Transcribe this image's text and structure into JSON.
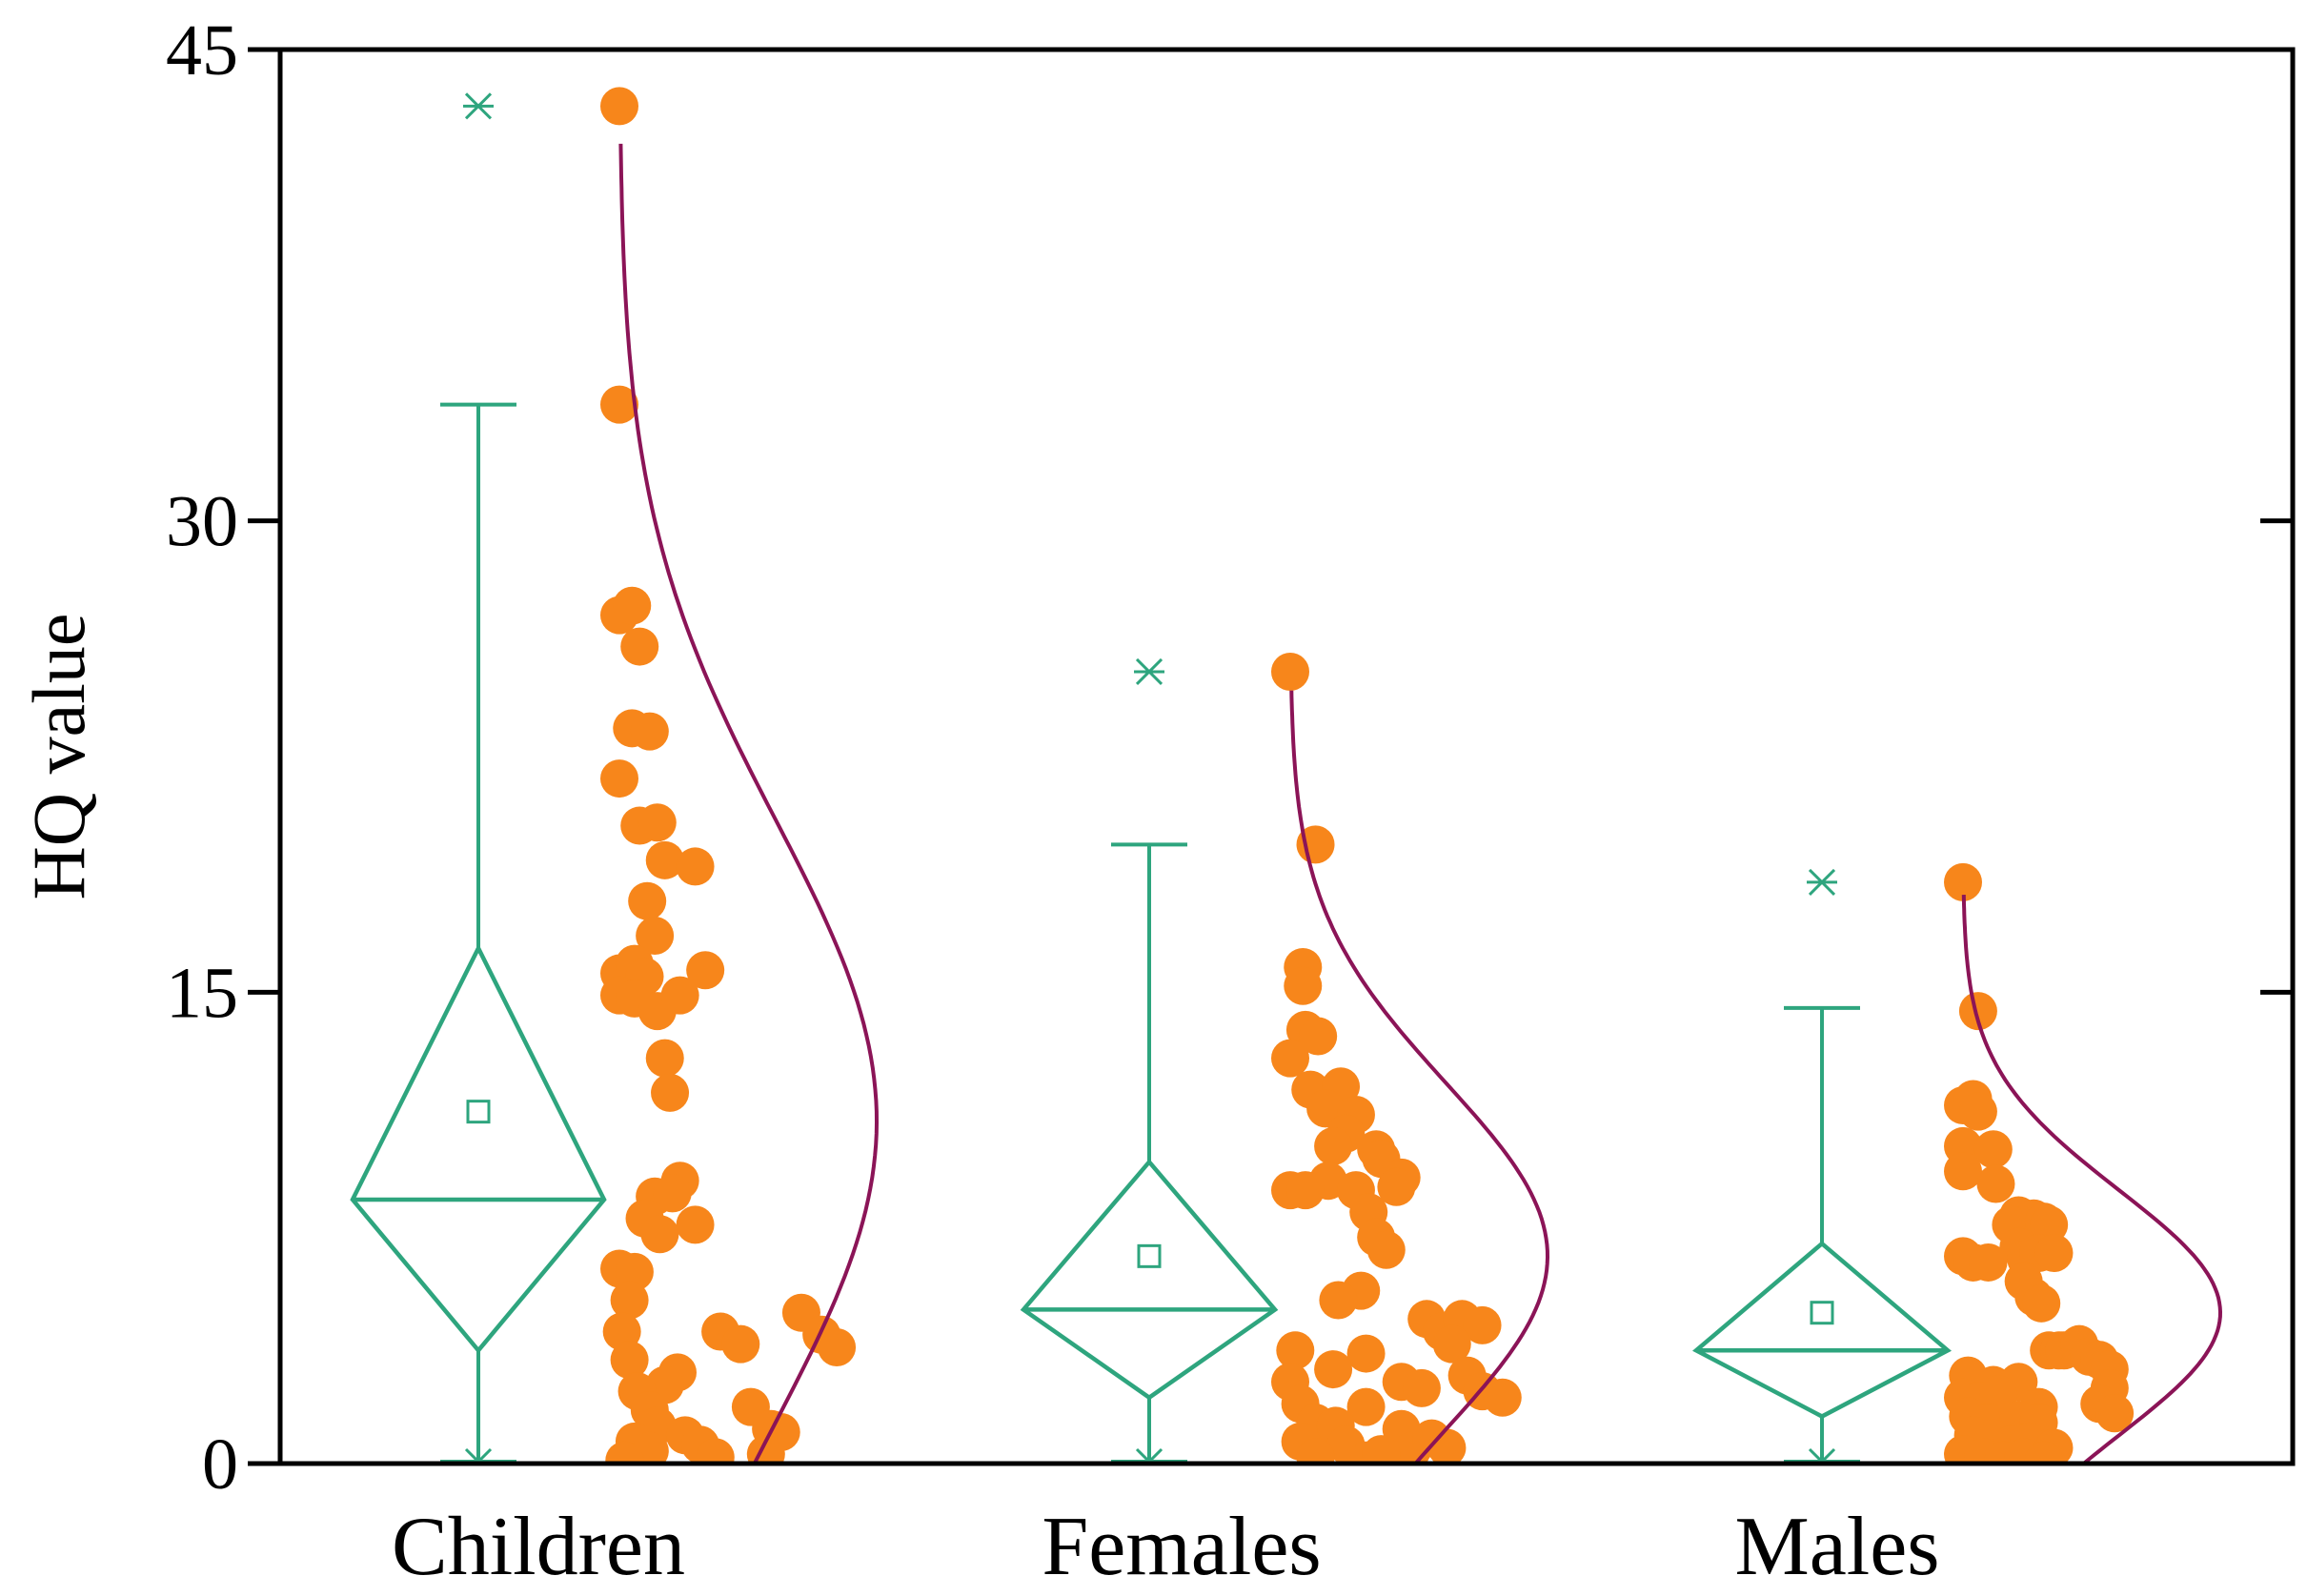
{
  "chart_data": {
    "type": "box-scatter",
    "title": "",
    "xlabel": "",
    "ylabel": "HQ value",
    "ylim": [
      0,
      45
    ],
    "yticks": [
      0,
      15,
      30,
      45
    ],
    "categories": [
      "Children",
      "Females",
      "Males"
    ],
    "colors": {
      "box": "#2ea57e",
      "points": "#f7861b",
      "curve": "#8b1457",
      "axis": "#000000"
    },
    "groups": [
      {
        "name": "Children",
        "box": {
          "q1": 3.6,
          "median": 8.4,
          "q3": 16.4,
          "mean": 11.2,
          "whisker_low": 0.0,
          "whisker_high": 33.7
        },
        "outliers": [
          43.2
        ],
        "curve": {
          "mean": 10.9,
          "sd": 9.6,
          "max": 42.0
        },
        "points": [
          {
            "x": 0.0,
            "y": 43.2
          },
          {
            "x": 0.0,
            "y": 33.7
          },
          {
            "x": 0.0,
            "y": 27.0
          },
          {
            "x": 0.05,
            "y": 27.3
          },
          {
            "x": 0.08,
            "y": 26.0
          },
          {
            "x": 0.05,
            "y": 23.4
          },
          {
            "x": 0.12,
            "y": 23.3
          },
          {
            "x": 0.0,
            "y": 21.8
          },
          {
            "x": 0.08,
            "y": 20.3
          },
          {
            "x": 0.15,
            "y": 20.4
          },
          {
            "x": 0.18,
            "y": 19.2
          },
          {
            "x": 0.3,
            "y": 19.0
          },
          {
            "x": 0.11,
            "y": 17.9
          },
          {
            "x": 0.14,
            "y": 16.8
          },
          {
            "x": 0.0,
            "y": 15.6
          },
          {
            "x": 0.06,
            "y": 15.9
          },
          {
            "x": 0.1,
            "y": 15.5
          },
          {
            "x": 0.34,
            "y": 15.7
          },
          {
            "x": 0.0,
            "y": 14.9
          },
          {
            "x": 0.06,
            "y": 14.8
          },
          {
            "x": 0.15,
            "y": 14.4
          },
          {
            "x": 0.24,
            "y": 14.9
          },
          {
            "x": 0.18,
            "y": 12.9
          },
          {
            "x": 0.2,
            "y": 11.8
          },
          {
            "x": 0.24,
            "y": 9.0
          },
          {
            "x": 0.14,
            "y": 8.5
          },
          {
            "x": 0.21,
            "y": 8.6
          },
          {
            "x": 0.1,
            "y": 7.8
          },
          {
            "x": 0.16,
            "y": 7.3
          },
          {
            "x": 0.3,
            "y": 7.6
          },
          {
            "x": 0.0,
            "y": 6.2
          },
          {
            "x": 0.06,
            "y": 6.1
          },
          {
            "x": 0.04,
            "y": 5.2
          },
          {
            "x": 0.01,
            "y": 4.2
          },
          {
            "x": 0.4,
            "y": 4.2
          },
          {
            "x": 0.48,
            "y": 3.8
          },
          {
            "x": 0.72,
            "y": 4.8
          },
          {
            "x": 0.8,
            "y": 4.1
          },
          {
            "x": 0.86,
            "y": 3.7
          },
          {
            "x": 0.04,
            "y": 3.3
          },
          {
            "x": 0.23,
            "y": 2.9
          },
          {
            "x": 0.18,
            "y": 2.5
          },
          {
            "x": 0.07,
            "y": 2.3
          },
          {
            "x": 0.12,
            "y": 1.7
          },
          {
            "x": 0.52,
            "y": 1.8
          },
          {
            "x": 0.15,
            "y": 1.2
          },
          {
            "x": 0.6,
            "y": 1.1
          },
          {
            "x": 0.64,
            "y": 1.0
          },
          {
            "x": 0.06,
            "y": 0.7
          },
          {
            "x": 0.12,
            "y": 0.4
          },
          {
            "x": 0.26,
            "y": 0.9
          },
          {
            "x": 0.32,
            "y": 0.6
          },
          {
            "x": 0.38,
            "y": 0.2
          },
          {
            "x": 0.58,
            "y": 0.3
          },
          {
            "x": 0.02,
            "y": 0.1
          }
        ]
      },
      {
        "name": "Females",
        "box": {
          "q1": 2.1,
          "median": 4.9,
          "q3": 9.6,
          "mean": 6.6,
          "whisker_low": 0.0,
          "whisker_high": 19.7
        },
        "outliers": [
          25.2
        ],
        "curve": {
          "mean": 6.6,
          "sd": 5.5,
          "max": 24.6
        },
        "points": [
          {
            "x": 0.0,
            "y": 25.2
          },
          {
            "x": 0.1,
            "y": 19.7
          },
          {
            "x": 0.05,
            "y": 15.8
          },
          {
            "x": 0.05,
            "y": 15.2
          },
          {
            "x": 0.06,
            "y": 13.8
          },
          {
            "x": 0.11,
            "y": 13.6
          },
          {
            "x": 0.0,
            "y": 12.9
          },
          {
            "x": 0.08,
            "y": 11.9
          },
          {
            "x": 0.2,
            "y": 12.0
          },
          {
            "x": 0.14,
            "y": 11.3
          },
          {
            "x": 0.26,
            "y": 11.1
          },
          {
            "x": 0.22,
            "y": 10.5
          },
          {
            "x": 0.17,
            "y": 10.1
          },
          {
            "x": 0.34,
            "y": 10.0
          },
          {
            "x": 0.36,
            "y": 9.7
          },
          {
            "x": 0.15,
            "y": 9.0
          },
          {
            "x": 0.44,
            "y": 9.1
          },
          {
            "x": 0.0,
            "y": 8.7
          },
          {
            "x": 0.06,
            "y": 8.7
          },
          {
            "x": 0.26,
            "y": 8.7
          },
          {
            "x": 0.42,
            "y": 8.8
          },
          {
            "x": 0.31,
            "y": 8.0
          },
          {
            "x": 0.34,
            "y": 7.2
          },
          {
            "x": 0.38,
            "y": 6.8
          },
          {
            "x": 0.28,
            "y": 5.5
          },
          {
            "x": 0.19,
            "y": 5.2
          },
          {
            "x": 0.54,
            "y": 4.6
          },
          {
            "x": 0.6,
            "y": 4.2
          },
          {
            "x": 0.68,
            "y": 4.6
          },
          {
            "x": 0.76,
            "y": 4.4
          },
          {
            "x": 0.64,
            "y": 3.8
          },
          {
            "x": 0.02,
            "y": 3.6
          },
          {
            "x": 0.3,
            "y": 3.5
          },
          {
            "x": 0.17,
            "y": 3.0
          },
          {
            "x": 0.7,
            "y": 2.8
          },
          {
            "x": 0.0,
            "y": 2.6
          },
          {
            "x": 0.44,
            "y": 2.6
          },
          {
            "x": 0.52,
            "y": 2.4
          },
          {
            "x": 0.76,
            "y": 2.3
          },
          {
            "x": 0.84,
            "y": 2.1
          },
          {
            "x": 0.04,
            "y": 1.9
          },
          {
            "x": 0.3,
            "y": 1.8
          },
          {
            "x": 0.1,
            "y": 1.3
          },
          {
            "x": 0.18,
            "y": 1.2
          },
          {
            "x": 0.44,
            "y": 1.1
          },
          {
            "x": 0.04,
            "y": 0.7
          },
          {
            "x": 0.22,
            "y": 0.6
          },
          {
            "x": 0.48,
            "y": 0.4
          },
          {
            "x": 0.56,
            "y": 0.8
          },
          {
            "x": 0.62,
            "y": 0.5
          },
          {
            "x": 0.1,
            "y": 0.2
          },
          {
            "x": 0.3,
            "y": 0.1
          },
          {
            "x": 0.36,
            "y": 0.3
          }
        ]
      },
      {
        "name": "Males",
        "box": {
          "q1": 1.5,
          "median": 3.6,
          "q3": 7.0,
          "mean": 4.8,
          "whisker_low": 0.0,
          "whisker_high": 14.5
        },
        "outliers": [
          18.5
        ],
        "curve": {
          "mean": 4.8,
          "sd": 3.9,
          "max": 18.1
        },
        "points": [
          {
            "x": 0.0,
            "y": 18.5
          },
          {
            "x": 0.06,
            "y": 14.4
          },
          {
            "x": 0.0,
            "y": 11.4
          },
          {
            "x": 0.04,
            "y": 11.6
          },
          {
            "x": 0.06,
            "y": 11.2
          },
          {
            "x": 0.0,
            "y": 10.1
          },
          {
            "x": 0.12,
            "y": 10.0
          },
          {
            "x": 0.0,
            "y": 9.3
          },
          {
            "x": 0.13,
            "y": 8.9
          },
          {
            "x": 0.22,
            "y": 7.9
          },
          {
            "x": 0.28,
            "y": 7.8
          },
          {
            "x": 0.19,
            "y": 7.6
          },
          {
            "x": 0.32,
            "y": 7.7
          },
          {
            "x": 0.34,
            "y": 7.6
          },
          {
            "x": 0.22,
            "y": 6.9
          },
          {
            "x": 0.25,
            "y": 6.5
          },
          {
            "x": 0.3,
            "y": 6.7
          },
          {
            "x": 0.36,
            "y": 6.7
          },
          {
            "x": 0.0,
            "y": 6.6
          },
          {
            "x": 0.04,
            "y": 6.4
          },
          {
            "x": 0.1,
            "y": 6.4
          },
          {
            "x": 0.24,
            "y": 5.8
          },
          {
            "x": 0.28,
            "y": 5.3
          },
          {
            "x": 0.31,
            "y": 5.1
          },
          {
            "x": 0.34,
            "y": 3.6
          },
          {
            "x": 0.38,
            "y": 3.6
          },
          {
            "x": 0.4,
            "y": 3.6
          },
          {
            "x": 0.46,
            "y": 3.8
          },
          {
            "x": 0.5,
            "y": 3.4
          },
          {
            "x": 0.54,
            "y": 3.3
          },
          {
            "x": 0.58,
            "y": 3.0
          },
          {
            "x": 0.02,
            "y": 2.8
          },
          {
            "x": 0.12,
            "y": 2.5
          },
          {
            "x": 0.22,
            "y": 2.6
          },
          {
            "x": 0.58,
            "y": 2.4
          },
          {
            "x": 0.0,
            "y": 2.1
          },
          {
            "x": 0.06,
            "y": 2.0
          },
          {
            "x": 0.14,
            "y": 2.2
          },
          {
            "x": 0.3,
            "y": 1.8
          },
          {
            "x": 0.54,
            "y": 1.9
          },
          {
            "x": 0.6,
            "y": 1.6
          },
          {
            "x": 0.02,
            "y": 1.5
          },
          {
            "x": 0.1,
            "y": 1.3
          },
          {
            "x": 0.22,
            "y": 1.4
          },
          {
            "x": 0.3,
            "y": 1.3
          },
          {
            "x": 0.04,
            "y": 0.9
          },
          {
            "x": 0.12,
            "y": 0.8
          },
          {
            "x": 0.19,
            "y": 0.6
          },
          {
            "x": 0.26,
            "y": 0.7
          },
          {
            "x": 0.36,
            "y": 0.5
          },
          {
            "x": 0.0,
            "y": 0.3
          },
          {
            "x": 0.08,
            "y": 0.2
          },
          {
            "x": 0.16,
            "y": 0.1
          },
          {
            "x": 0.24,
            "y": 0.2
          },
          {
            "x": 0.32,
            "y": 0.1
          }
        ]
      }
    ]
  }
}
